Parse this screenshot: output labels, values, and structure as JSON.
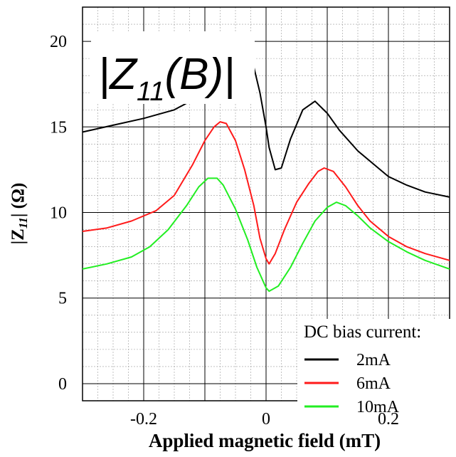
{
  "chart_data": {
    "type": "line",
    "title": "|Z",
    "title_sub": "11",
    "title_arg": "(B)|",
    "xlabel": "Applied magnetic field (mT)",
    "ylabel_prefix": "|Z",
    "ylabel_sub": "11",
    "ylabel_suffix": "| (Ω)",
    "xlim": [
      -0.3,
      0.3
    ],
    "ylim": [
      -1,
      22
    ],
    "x_ticks": [
      {
        "value": -0.2,
        "label": "-0.2"
      },
      {
        "value": 0,
        "label": "0"
      },
      {
        "value": 0.2,
        "label": "0.2"
      }
    ],
    "y_ticks": [
      {
        "value": 0,
        "label": "0"
      },
      {
        "value": 5,
        "label": "5"
      },
      {
        "value": 10,
        "label": "10"
      },
      {
        "value": 15,
        "label": "15"
      },
      {
        "value": 20,
        "label": "20"
      }
    ],
    "grid": true,
    "legend": {
      "title": "DC bias current:",
      "placement": "bottom-right"
    },
    "series": [
      {
        "name": "2mA",
        "color": "#000000",
        "points": [
          [
            -0.3,
            14.7
          ],
          [
            -0.25,
            15.1
          ],
          [
            -0.2,
            15.5
          ],
          [
            -0.15,
            16.0
          ],
          [
            -0.02,
            18.5
          ],
          [
            -0.01,
            17.0
          ],
          [
            0.0,
            15.0
          ],
          [
            0.005,
            13.8
          ],
          [
            0.015,
            12.5
          ],
          [
            0.025,
            12.6
          ],
          [
            0.04,
            14.3
          ],
          [
            0.06,
            16.0
          ],
          [
            0.08,
            16.5
          ],
          [
            0.1,
            15.8
          ],
          [
            0.12,
            14.8
          ],
          [
            0.15,
            13.6
          ],
          [
            0.18,
            12.7
          ],
          [
            0.2,
            12.1
          ],
          [
            0.23,
            11.6
          ],
          [
            0.26,
            11.2
          ],
          [
            0.3,
            10.9
          ]
        ]
      },
      {
        "name": "6mA",
        "color": "#ff1a1a",
        "points": [
          [
            -0.3,
            8.9
          ],
          [
            -0.26,
            9.1
          ],
          [
            -0.22,
            9.5
          ],
          [
            -0.18,
            10.1
          ],
          [
            -0.15,
            11.0
          ],
          [
            -0.12,
            12.8
          ],
          [
            -0.1,
            14.2
          ],
          [
            -0.085,
            15.0
          ],
          [
            -0.075,
            15.3
          ],
          [
            -0.065,
            15.2
          ],
          [
            -0.05,
            14.2
          ],
          [
            -0.035,
            12.5
          ],
          [
            -0.02,
            10.4
          ],
          [
            -0.01,
            8.5
          ],
          [
            0.0,
            7.3
          ],
          [
            0.005,
            7.0
          ],
          [
            0.015,
            7.6
          ],
          [
            0.03,
            9.0
          ],
          [
            0.05,
            10.6
          ],
          [
            0.07,
            11.7
          ],
          [
            0.085,
            12.4
          ],
          [
            0.095,
            12.6
          ],
          [
            0.11,
            12.4
          ],
          [
            0.13,
            11.5
          ],
          [
            0.15,
            10.4
          ],
          [
            0.17,
            9.5
          ],
          [
            0.2,
            8.6
          ],
          [
            0.23,
            8.0
          ],
          [
            0.26,
            7.6
          ],
          [
            0.3,
            7.2
          ]
        ]
      },
      {
        "name": "10mA",
        "color": "#22ee22",
        "points": [
          [
            -0.3,
            6.7
          ],
          [
            -0.26,
            7.0
          ],
          [
            -0.22,
            7.4
          ],
          [
            -0.19,
            8.0
          ],
          [
            -0.16,
            9.0
          ],
          [
            -0.13,
            10.4
          ],
          [
            -0.11,
            11.5
          ],
          [
            -0.095,
            12.0
          ],
          [
            -0.08,
            12.0
          ],
          [
            -0.07,
            11.6
          ],
          [
            -0.05,
            10.2
          ],
          [
            -0.03,
            8.4
          ],
          [
            -0.015,
            6.8
          ],
          [
            0.0,
            5.6
          ],
          [
            0.005,
            5.4
          ],
          [
            0.02,
            5.7
          ],
          [
            0.04,
            6.8
          ],
          [
            0.06,
            8.2
          ],
          [
            0.08,
            9.5
          ],
          [
            0.1,
            10.3
          ],
          [
            0.115,
            10.6
          ],
          [
            0.13,
            10.4
          ],
          [
            0.15,
            9.8
          ],
          [
            0.17,
            9.1
          ],
          [
            0.2,
            8.3
          ],
          [
            0.23,
            7.7
          ],
          [
            0.26,
            7.2
          ],
          [
            0.3,
            6.7
          ]
        ]
      }
    ]
  }
}
